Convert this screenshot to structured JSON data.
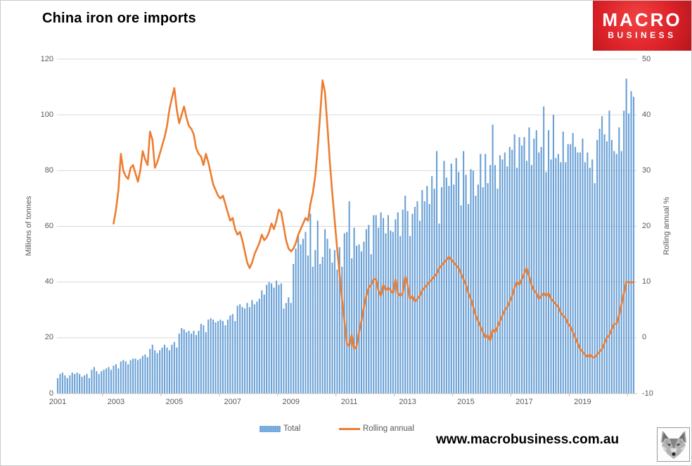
{
  "title": "China iron ore imports",
  "logo": {
    "line1": "MACRO",
    "line2": "BUSINESS",
    "bg_color": "#dd2229"
  },
  "footer": {
    "url": "www.macrobusiness.com.au"
  },
  "legend": [
    {
      "label": "Total",
      "type": "bar",
      "color": "#7fb2e2"
    },
    {
      "label": "Rolling annual",
      "type": "line",
      "color": "#ED7D31"
    }
  ],
  "axes": {
    "left": {
      "title": "Millions of tonnes",
      "ticks": [
        0,
        20,
        40,
        60,
        80,
        100,
        120
      ],
      "range": [
        0,
        120
      ]
    },
    "right": {
      "title": "Rolling annual %",
      "ticks": [
        -10,
        0,
        10,
        20,
        30,
        40,
        50
      ],
      "range": [
        -10,
        50
      ]
    },
    "x": {
      "tick_labels": [
        "2001",
        "2003",
        "2005",
        "2007",
        "2009",
        "2011",
        "2013",
        "2015",
        "2017",
        "2019"
      ]
    }
  },
  "chart_data": {
    "type": "bar+line",
    "title": "China iron ore imports",
    "x_start_month": "2001-01",
    "x_end_month": "2020-10",
    "grid": "horizontal",
    "legend_position": "bottom",
    "colors": {
      "bar": "#6fa5d9",
      "bar_dot": "#4a86c2",
      "line": "#ED7D31",
      "grid": "#d9d9d9",
      "axis": "#bfbfbf"
    },
    "bar_series": {
      "name": "Total",
      "unit": "Millions of tonnes",
      "axis": "left",
      "ylim": [
        0,
        120
      ],
      "values": [
        5.5,
        7,
        7.5,
        6.5,
        5.5,
        6.5,
        7.5,
        7,
        7.5,
        7,
        6,
        6.5,
        7,
        5.5,
        8.5,
        9.5,
        8,
        7,
        8,
        8.5,
        9,
        9.5,
        8.5,
        10,
        10.5,
        9,
        11.5,
        12,
        11.5,
        10.5,
        12,
        12.5,
        12.5,
        12,
        12.5,
        13.5,
        14,
        13,
        16,
        17.5,
        15.5,
        14.5,
        15.5,
        16.5,
        17.5,
        16.5,
        15.5,
        17.5,
        18.5,
        16.5,
        21.5,
        23.5,
        23,
        22,
        22.5,
        21.5,
        22.5,
        21,
        22.5,
        25,
        24.5,
        22,
        26.5,
        27,
        26.5,
        25.5,
        26,
        26.5,
        26,
        24.5,
        26.5,
        28,
        28.5,
        26,
        31.5,
        32,
        31,
        30.5,
        32.5,
        31,
        33.5,
        32,
        33,
        34,
        37,
        35.5,
        39,
        40,
        39.5,
        38,
        40.5,
        39,
        39.5,
        30.5,
        32.5,
        34.5,
        32.5,
        46.5,
        52,
        57,
        53.5,
        55.5,
        58,
        49.5,
        64.5,
        45.5,
        51.5,
        62,
        46.5,
        49,
        59,
        55.5,
        52,
        47,
        51.5,
        44.5,
        52.5,
        45.5,
        57.5,
        58,
        69,
        48.5,
        59.5,
        53,
        53.5,
        51,
        54.5,
        59,
        60.5,
        50,
        64,
        64,
        59.5,
        65,
        63,
        57.5,
        64,
        58.5,
        58,
        62.5,
        65,
        56.5,
        66,
        71,
        65.5,
        56.5,
        64.5,
        67,
        69,
        62,
        73,
        69,
        74.5,
        68,
        78,
        73.5,
        87,
        61,
        74,
        83.5,
        77.5,
        74.5,
        82.5,
        75,
        84.5,
        79.5,
        67.5,
        87,
        78.5,
        68,
        80.5,
        80,
        71,
        75,
        86,
        74,
        86,
        75.5,
        82,
        96.5,
        82,
        73.5,
        85.5,
        84,
        86.5,
        81.5,
        88.5,
        87.5,
        93,
        81,
        92,
        89,
        92,
        83.5,
        95.5,
        82,
        91.5,
        94.5,
        86.5,
        88.5,
        103,
        79.5,
        94.5,
        84,
        100,
        84.5,
        86,
        83,
        94,
        83,
        89.5,
        89.5,
        93.5,
        88.5,
        86.5,
        86.5,
        91.5,
        83,
        86.5,
        81,
        84,
        75.5,
        91,
        95,
        99.5,
        93,
        90.5,
        101.5,
        91,
        87,
        86,
        95.5,
        87,
        101.5,
        113,
        100.5,
        108.5,
        106.5
      ]
    },
    "line_series": {
      "name": "Rolling annual",
      "unit": "%",
      "axis": "right",
      "ylim": [
        -10,
        50
      ],
      "start_month": "2002-12",
      "values": [
        20.5,
        23,
        26.5,
        33,
        30,
        29,
        28.5,
        30.5,
        31,
        29.5,
        28,
        30,
        33.5,
        32,
        31,
        37,
        35.5,
        30.5,
        31.5,
        33,
        34.5,
        36,
        38,
        41,
        43,
        44.8,
        41,
        38.5,
        40,
        41.5,
        39.5,
        38,
        37.5,
        36.5,
        34,
        33,
        32.5,
        31,
        33,
        31.5,
        29.5,
        27.5,
        26.5,
        25.5,
        25,
        25.5,
        24,
        22.5,
        21,
        21.5,
        19.5,
        18.5,
        19,
        17.5,
        15.5,
        13.5,
        12.5,
        13.5,
        15,
        16,
        17,
        18.5,
        17.5,
        18,
        19,
        20.5,
        19.5,
        21,
        23,
        22.5,
        20,
        17.5,
        16,
        15.5,
        16,
        17,
        18.5,
        19.5,
        20.5,
        21.5,
        21,
        24,
        26,
        29,
        34,
        40,
        46.2,
        44,
        38,
        31.5,
        26,
        21,
        16,
        11.5,
        7,
        3,
        -1,
        -1.5,
        0.5,
        -2,
        -1.5,
        1,
        3,
        5.5,
        7.5,
        9,
        9.5,
        10.5,
        10.5,
        8.5,
        7.5,
        9.5,
        8.5,
        9,
        8.5,
        8,
        10.5,
        8,
        7.5,
        8,
        11,
        9.5,
        7,
        7.5,
        6.5,
        7,
        7.5,
        8.5,
        9,
        9.5,
        10,
        10.5,
        11,
        11.5,
        12.5,
        13,
        13.5,
        14,
        14.5,
        14,
        13.5,
        13,
        12.5,
        11.5,
        10.5,
        9.5,
        8,
        7,
        5.5,
        4,
        3,
        2,
        1,
        0,
        0.5,
        -0.5,
        1.5,
        1,
        2,
        3,
        4,
        5,
        5.5,
        6.5,
        7.5,
        9,
        10,
        9.5,
        10.5,
        11.5,
        12.5,
        11,
        9.5,
        8.5,
        8,
        7,
        7.5,
        8,
        7.5,
        8,
        7,
        6.5,
        6,
        5.5,
        4.5,
        4,
        3.5,
        2.5,
        2,
        1,
        0,
        -1,
        -2,
        -2.5,
        -3,
        -3.5,
        -3,
        -3.5,
        -3.5,
        -3,
        -2.5,
        -2,
        -1,
        0,
        0.5,
        1.5,
        2.5,
        2.5,
        4,
        6,
        8,
        10,
        10,
        9.9,
        10
      ]
    }
  }
}
